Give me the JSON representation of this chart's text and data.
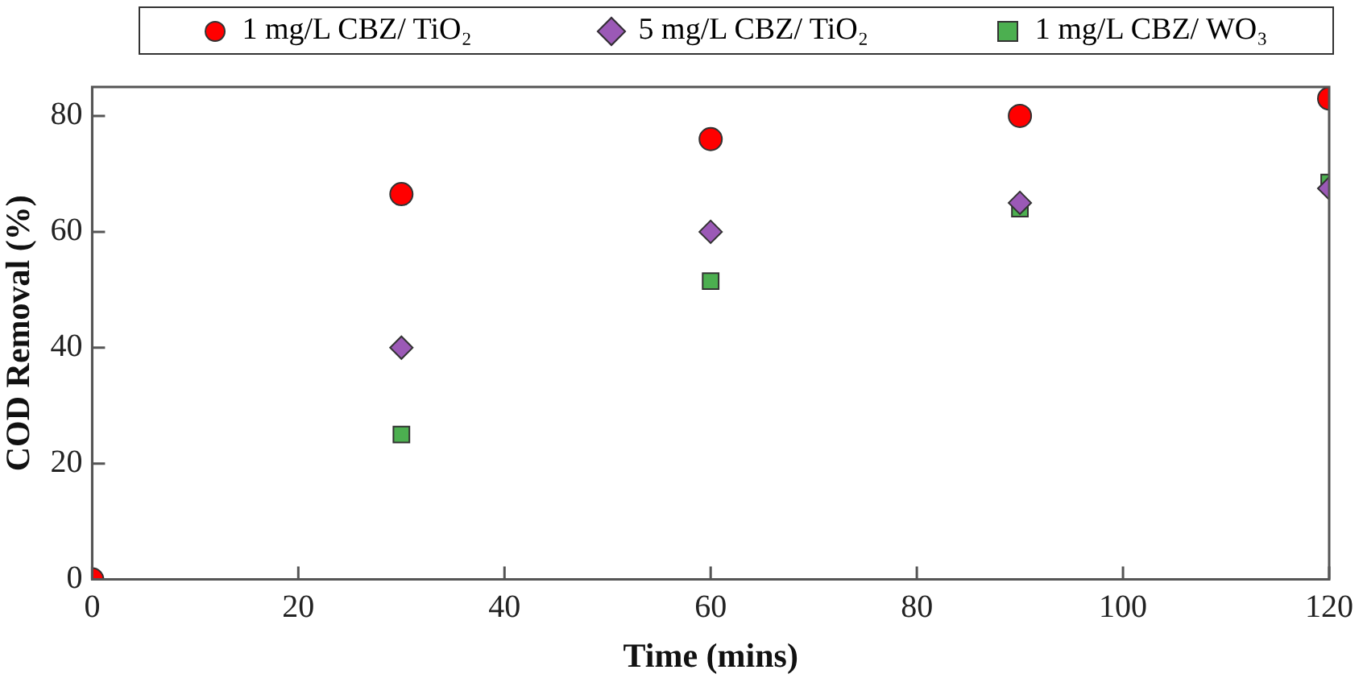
{
  "chart_data": {
    "type": "scatter",
    "xlabel": "Time (mins)",
    "ylabel": "COD Removal (%)",
    "xlim": [
      0,
      120
    ],
    "xticks": [
      0,
      20,
      40,
      60,
      80,
      100,
      120
    ],
    "ylim": [
      0,
      85
    ],
    "yticks": [
      0,
      20,
      40,
      60,
      80
    ],
    "grid": false,
    "legend": "top",
    "series": [
      {
        "name": "1 mg/L CBZ/ TiO₂",
        "color": "#ff0000",
        "marker": "circle",
        "x": [
          0,
          30,
          60,
          90,
          120
        ],
        "values": [
          0,
          66.5,
          76,
          80,
          83
        ]
      },
      {
        "name": "5 mg/L CBZ/ TiO₂",
        "color": "#9b59b6",
        "marker": "diamond",
        "x": [
          30,
          60,
          90,
          120
        ],
        "values": [
          40,
          60,
          65,
          67.5
        ]
      },
      {
        "name": "1 mg/L CBZ/ WO₃",
        "color": "#4caf50",
        "marker": "square",
        "x": [
          30,
          60,
          90,
          120
        ],
        "values": [
          25,
          51.5,
          64,
          68.5
        ]
      }
    ]
  }
}
